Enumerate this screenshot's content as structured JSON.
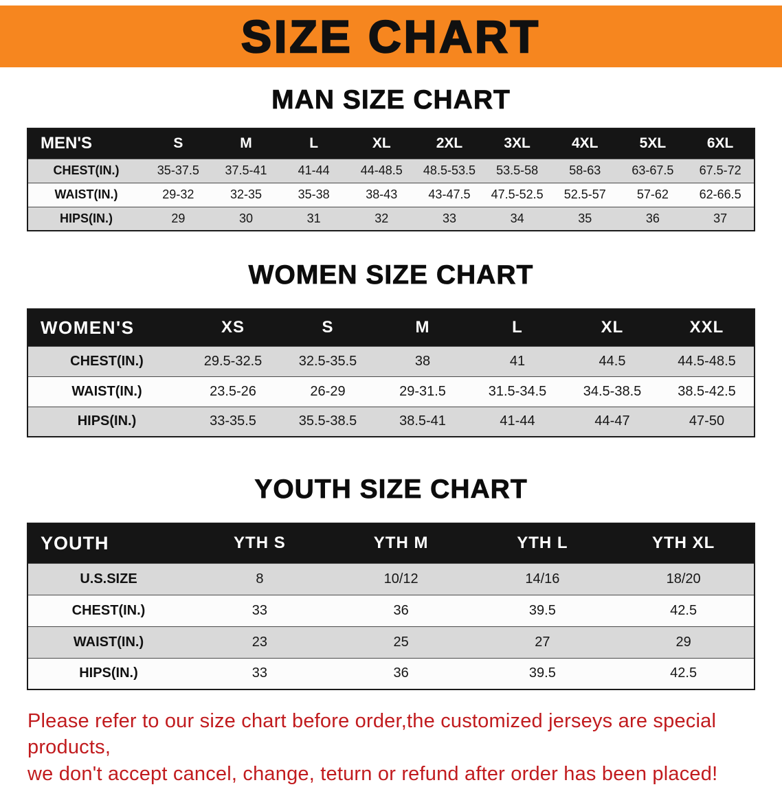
{
  "banner": {
    "title": "SIZE CHART",
    "bg_color": "#F6861F",
    "text_color": "#101010"
  },
  "sections": [
    {
      "id": "men",
      "heading": "MAN SIZE CHART",
      "table": {
        "header": [
          "MEN'S",
          "S",
          "M",
          "L",
          "XL",
          "2XL",
          "3XL",
          "4XL",
          "5XL",
          "6XL"
        ],
        "rows": [
          [
            "CHEST(IN.)",
            "35-37.5",
            "37.5-41",
            "41-44",
            "44-48.5",
            "48.5-53.5",
            "53.5-58",
            "58-63",
            "63-67.5",
            "67.5-72"
          ],
          [
            "WAIST(IN.)",
            "29-32",
            "32-35",
            "35-38",
            "38-43",
            "43-47.5",
            "47.5-52.5",
            "52.5-57",
            "57-62",
            "62-66.5"
          ],
          [
            "HIPS(IN.)",
            "29",
            "30",
            "31",
            "32",
            "33",
            "34",
            "35",
            "36",
            "37"
          ]
        ]
      }
    },
    {
      "id": "women",
      "heading": "WOMEN SIZE CHART",
      "table": {
        "header": [
          "WOMEN'S",
          "XS",
          "S",
          "M",
          "L",
          "XL",
          "XXL"
        ],
        "rows": [
          [
            "CHEST(IN.)",
            "29.5-32.5",
            "32.5-35.5",
            "38",
            "41",
            "44.5",
            "44.5-48.5"
          ],
          [
            "WAIST(IN.)",
            "23.5-26",
            "26-29",
            "29-31.5",
            "31.5-34.5",
            "34.5-38.5",
            "38.5-42.5"
          ],
          [
            "HIPS(IN.)",
            "33-35.5",
            "35.5-38.5",
            "38.5-41",
            "41-44",
            "44-47",
            "47-50"
          ]
        ]
      }
    },
    {
      "id": "youth",
      "heading": "YOUTH SIZE CHART",
      "table": {
        "header": [
          "YOUTH",
          "YTH S",
          "YTH M",
          "YTH L",
          "YTH XL"
        ],
        "rows": [
          [
            "U.S.SIZE",
            "8",
            "10/12",
            "14/16",
            "18/20"
          ],
          [
            "CHEST(IN.)",
            "33",
            "36",
            "39.5",
            "42.5"
          ],
          [
            "WAIST(IN.)",
            "23",
            "25",
            "27",
            "29"
          ],
          [
            "HIPS(IN.)",
            "33",
            "36",
            "39.5",
            "42.5"
          ]
        ]
      }
    }
  ],
  "footer": {
    "line1": "Please refer to our size chart before order,the customized jerseys are special products,",
    "line2": "we don't accept cancel, change, teturn or refund after order has been placed!",
    "text_color": "#C11B1E"
  },
  "colors": {
    "banner_orange": "#F6861F",
    "table_header_black": "#151515",
    "stripe_gray": "#D9D9D9",
    "note_red": "#C11B1E"
  }
}
